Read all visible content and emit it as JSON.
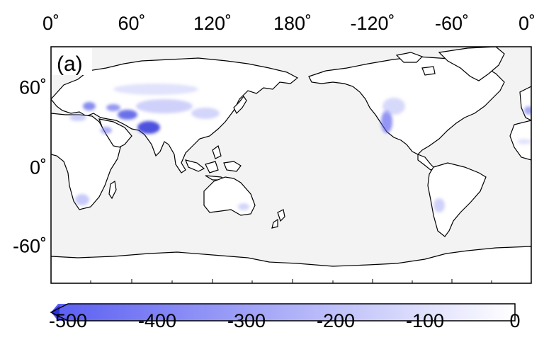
{
  "panel_label": "(a)",
  "lon_ticks": [
    "0˚",
    "60˚",
    "120˚",
    "180˚",
    "-120˚",
    "-60˚",
    "0˚"
  ],
  "lat_ticks": [
    "60˚",
    "0˚",
    "-60˚"
  ],
  "colorbar": {
    "ticks": [
      "-500",
      "-400",
      "-300",
      "-200",
      "-100",
      "0"
    ],
    "min": -500,
    "max": 0,
    "extend": "min",
    "color_low": "#5f63f2",
    "color_high": "#ffffff"
  },
  "colors": {
    "ocean": "#f3f3f3",
    "land": "#ffffff",
    "coast": "#000000",
    "data_hotspot": "#2d33d8"
  }
}
